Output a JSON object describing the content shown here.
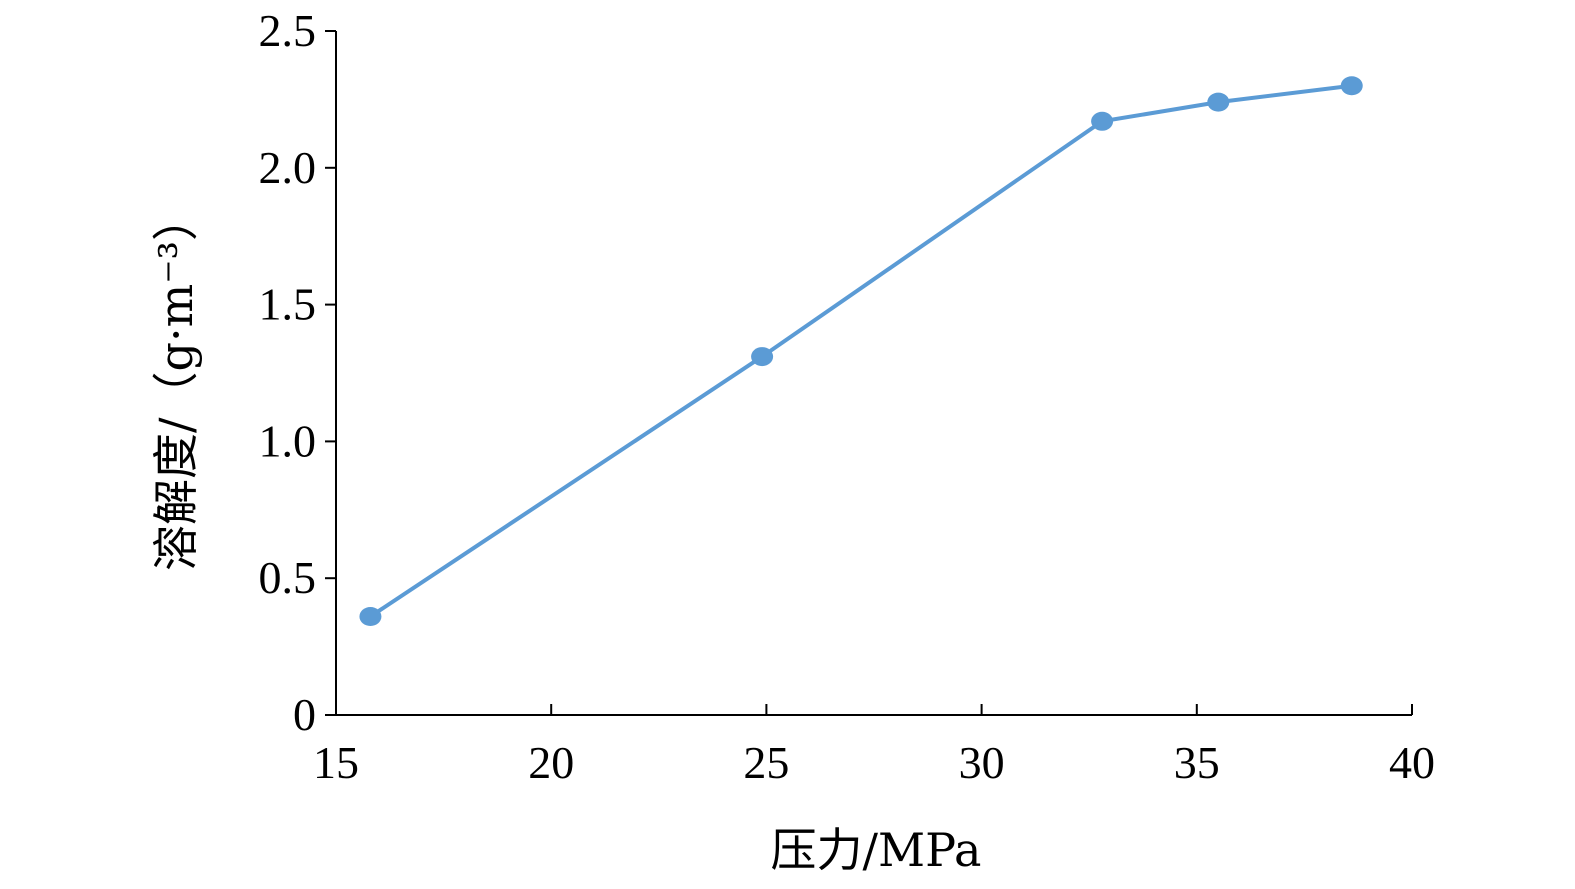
{
  "chart_data": {
    "type": "line",
    "title": "",
    "xlabel": "压力/MPa",
    "ylabel": "溶解度/（g·m⁻³）",
    "xlim": [
      15,
      40
    ],
    "ylim": [
      0,
      2.5
    ],
    "x_ticks": [
      15,
      20,
      25,
      30,
      35,
      40
    ],
    "x_tick_labels": [
      "15",
      "20",
      "25",
      "30",
      "35",
      "40"
    ],
    "y_ticks": [
      0,
      0.5,
      1.0,
      1.5,
      2.0,
      2.5
    ],
    "y_tick_labels": [
      "0",
      "0.5",
      "1.0",
      "1.5",
      "2.0",
      "2.5"
    ],
    "grid": false,
    "legend": "none",
    "series": [
      {
        "color": "#5b9bd5",
        "markers": true,
        "x": [
          15.8,
          24.9,
          32.8,
          35.5,
          38.6
        ],
        "y": [
          0.36,
          1.31,
          2.17,
          2.24,
          2.3
        ]
      }
    ]
  }
}
